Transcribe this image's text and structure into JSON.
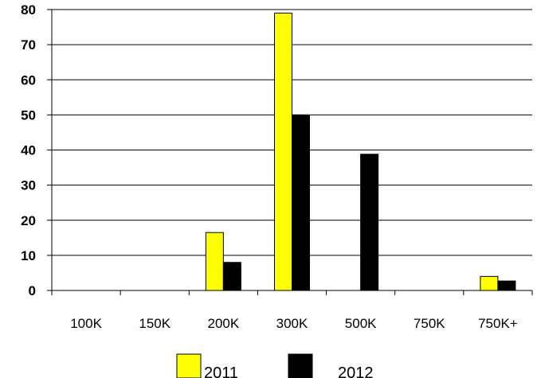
{
  "chart_data": {
    "type": "bar",
    "categories": [
      "100K",
      "150K",
      "200K",
      "300K",
      "500K",
      "750K",
      "750K+"
    ],
    "series": [
      {
        "name": "2011",
        "values": [
          0,
          0,
          16.5,
          79,
          0,
          0,
          4
        ],
        "color": "#ffff00"
      },
      {
        "name": "2012",
        "values": [
          0,
          0,
          8,
          50,
          38.8,
          0,
          2.7
        ],
        "color": "#000000"
      }
    ],
    "yticks": [
      0,
      10,
      20,
      30,
      40,
      50,
      60,
      70,
      80
    ],
    "ylim": [
      0,
      80
    ],
    "grid": true,
    "legend_position": "bottom"
  }
}
